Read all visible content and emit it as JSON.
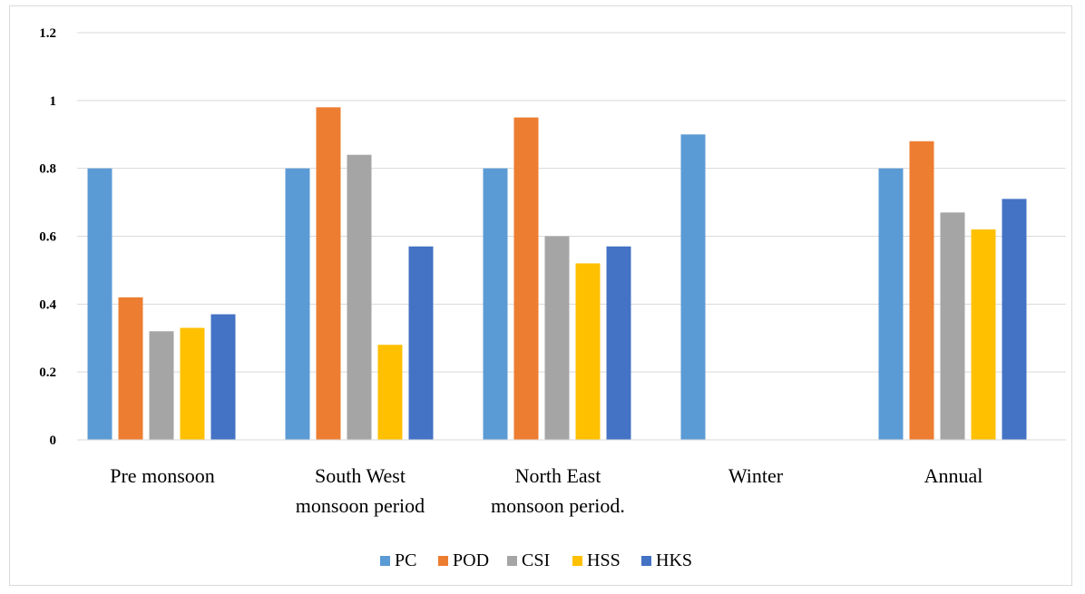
{
  "chart_data": {
    "type": "bar",
    "categories": [
      [
        "Pre monsoon"
      ],
      [
        "South West",
        "monsoon period"
      ],
      [
        "North East",
        "monsoon period."
      ],
      [
        "Winter"
      ],
      [
        "Annual"
      ]
    ],
    "series": [
      {
        "name": "PC",
        "color": "#5B9BD5",
        "values": [
          0.8,
          0.8,
          0.8,
          0.9,
          0.8
        ]
      },
      {
        "name": "POD",
        "color": "#ED7D31",
        "values": [
          0.42,
          0.98,
          0.95,
          null,
          0.88
        ]
      },
      {
        "name": "CSI",
        "color": "#A5A5A5",
        "values": [
          0.32,
          0.84,
          0.6,
          null,
          0.67
        ]
      },
      {
        "name": "HSS",
        "color": "#FFC000",
        "values": [
          0.33,
          0.28,
          0.52,
          null,
          0.62
        ]
      },
      {
        "name": "HKS",
        "color": "#4472C4",
        "values": [
          0.37,
          0.57,
          0.57,
          null,
          0.71
        ]
      }
    ],
    "yticks": [
      "0",
      "0.2",
      "0.4",
      "0.6",
      "0.8",
      "1",
      "1.2"
    ],
    "ylim": [
      0,
      1.2
    ],
    "grid": true,
    "legend_position": "bottom"
  }
}
